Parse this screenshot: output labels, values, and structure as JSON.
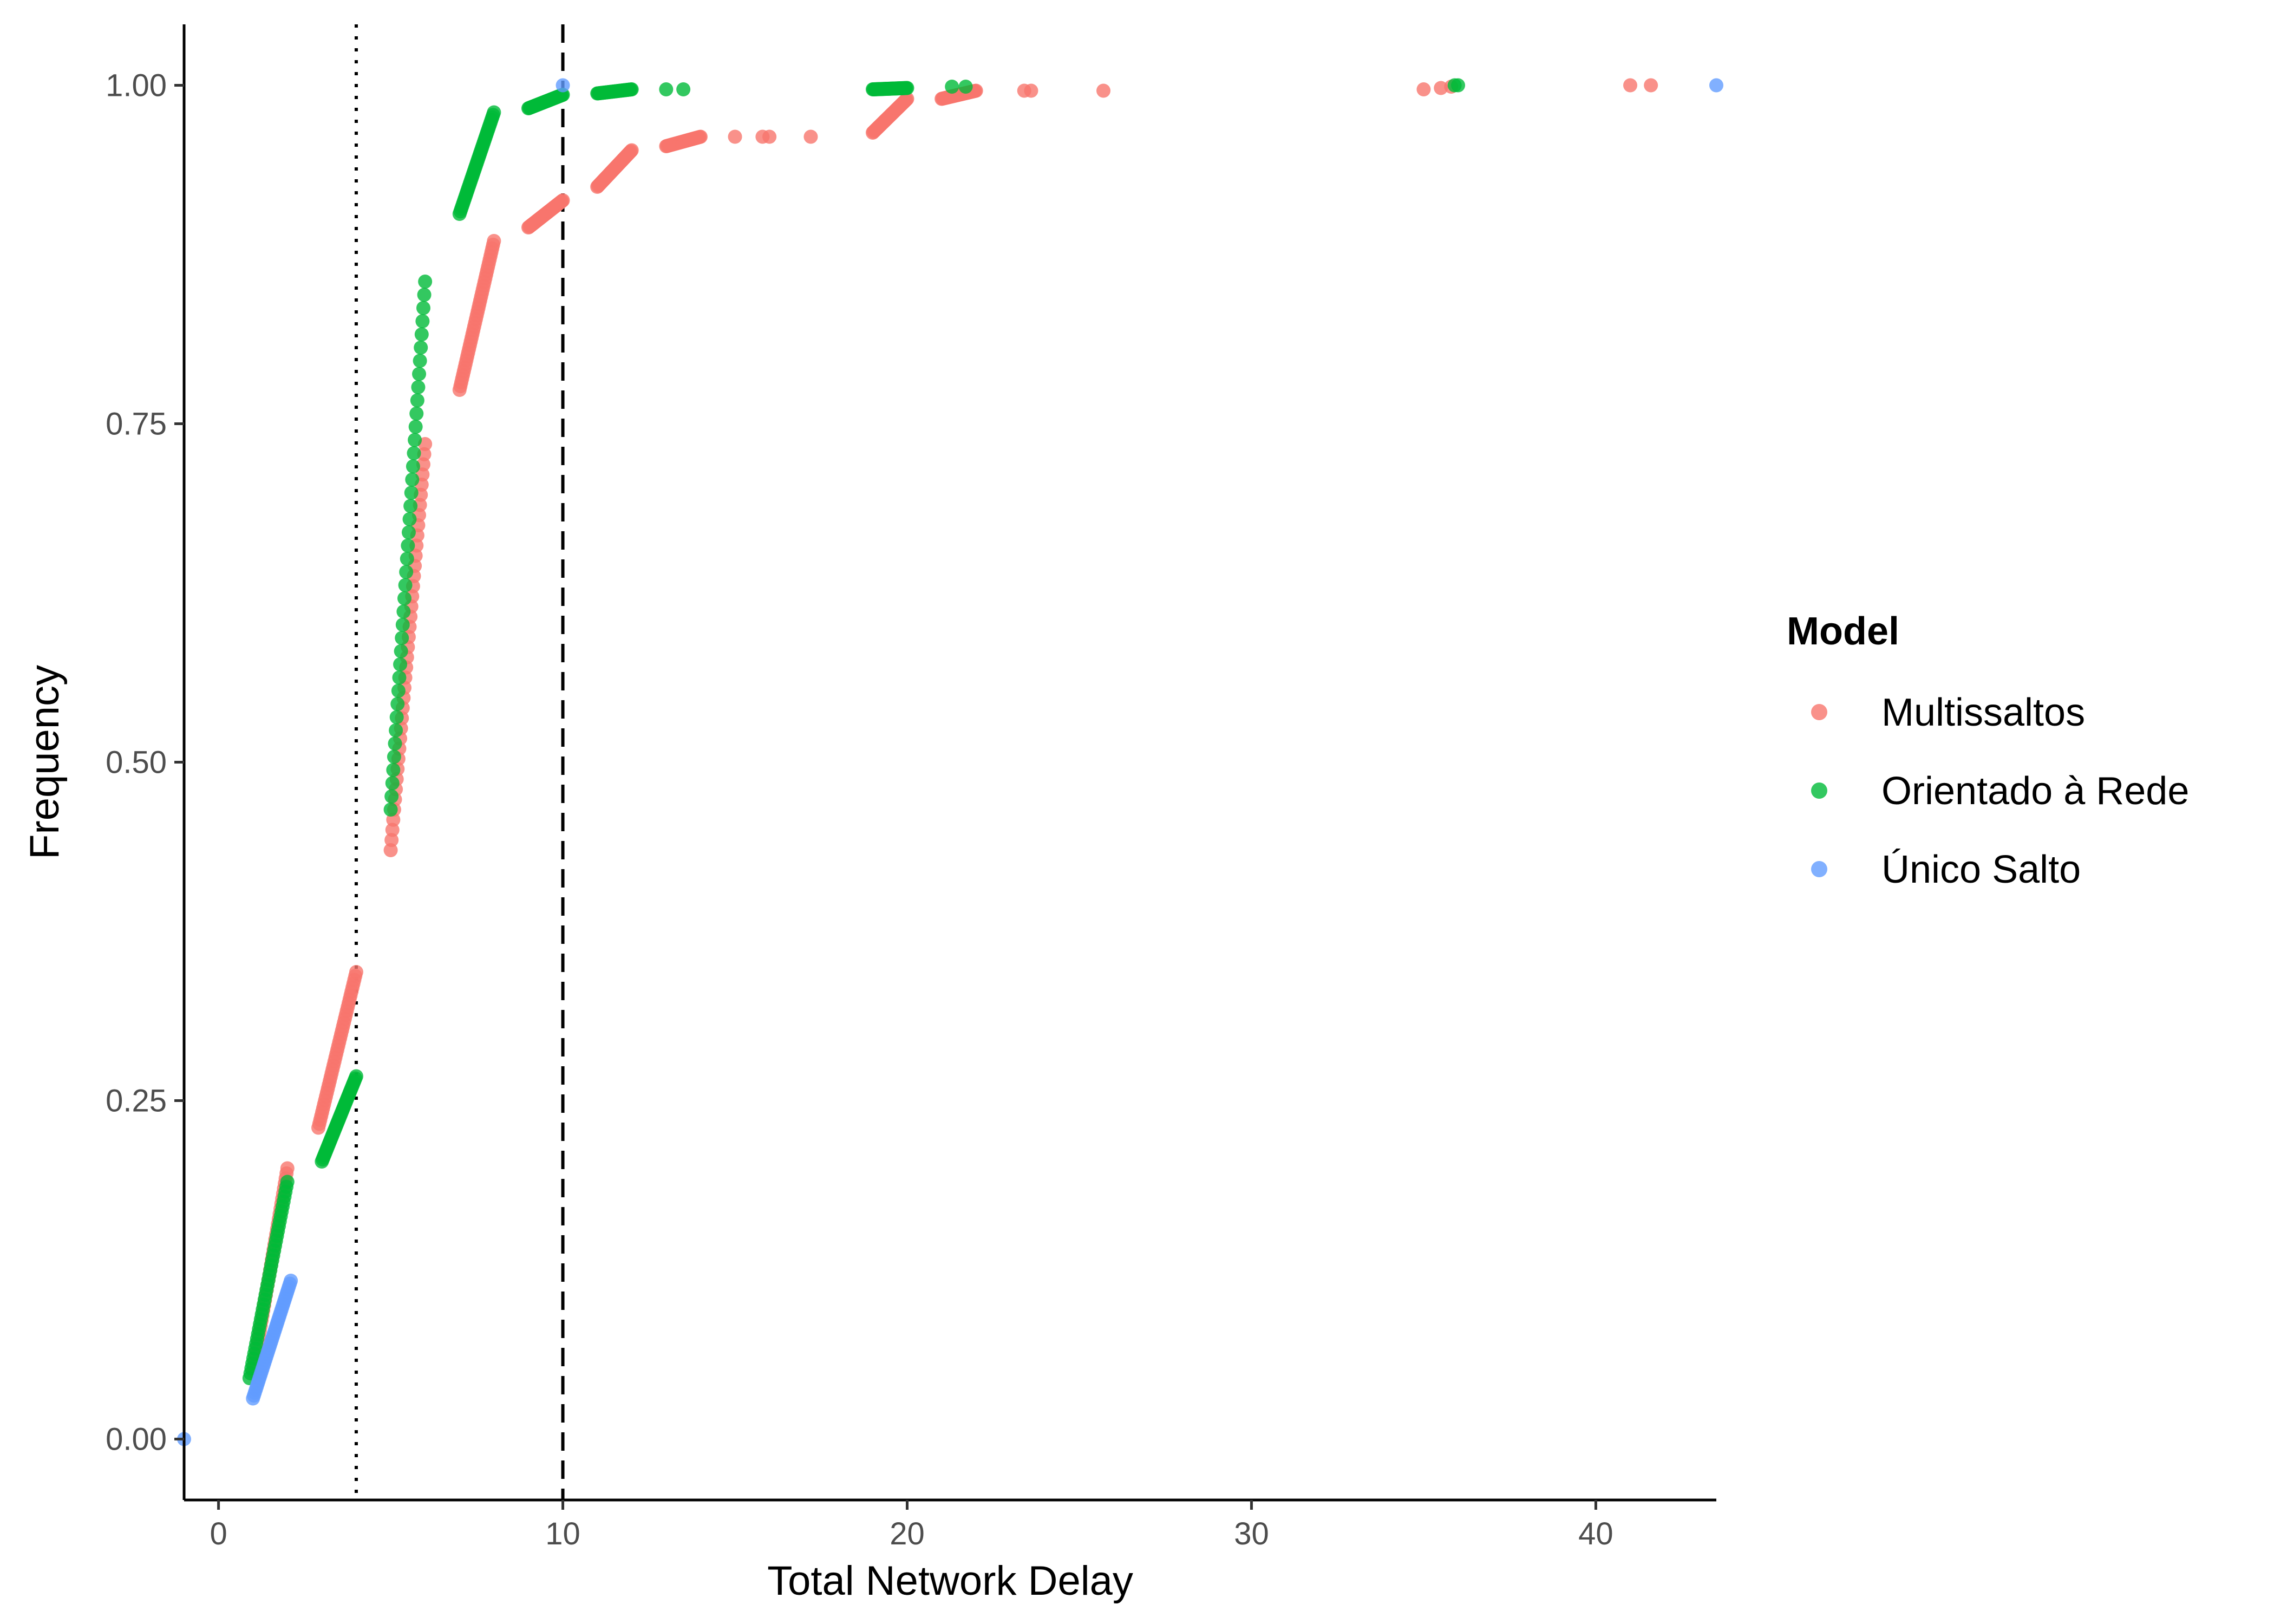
{
  "chart_data": {
    "type": "scatter",
    "title": "",
    "xlabel": "Total Network Delay",
    "ylabel": "Frequency",
    "xlim": [
      -1,
      43.5
    ],
    "ylim": [
      -0.045,
      1.045
    ],
    "x_ticks": [
      0,
      10,
      20,
      30,
      40
    ],
    "x_tick_labels": [
      "0",
      "10",
      "20",
      "30",
      "40"
    ],
    "y_ticks": [
      0,
      0.25,
      0.5,
      0.75,
      1.0
    ],
    "y_tick_labels": [
      "0.00",
      "0.25",
      "0.50",
      "0.75",
      "1.00"
    ],
    "grid": false,
    "legend_position": "right",
    "legend_title": "Model",
    "reference_lines": [
      {
        "x": 4,
        "style": "dotted",
        "color": "#000000"
      },
      {
        "x": 10,
        "style": "dashed",
        "color": "#000000"
      }
    ],
    "series": [
      {
        "name": "Multissaltos",
        "color": "#F8766D",
        "segments": [
          {
            "x": [
              1.0,
              2.0
            ],
            "y": [
              0.05,
              0.2
            ]
          },
          {
            "x": [
              2.9,
              4.0
            ],
            "y": [
              0.23,
              0.345
            ]
          },
          {
            "x": [
              5.0,
              6.0
            ],
            "y": [
              0.435,
              0.735
            ]
          },
          {
            "x": [
              7.0,
              8.0
            ],
            "y": [
              0.775,
              0.885
            ]
          },
          {
            "x": [
              9.0,
              10.0
            ],
            "y": [
              0.895,
              0.915
            ]
          },
          {
            "x": [
              11.0,
              12.0
            ],
            "y": [
              0.925,
              0.952
            ]
          },
          {
            "x": [
              13.0,
              14.0
            ],
            "y": [
              0.955,
              0.962
            ]
          },
          {
            "x": [
              19.0,
              20.0
            ],
            "y": [
              0.965,
              0.99
            ]
          },
          {
            "x": [
              21.0,
              22.0
            ],
            "y": [
              0.99,
              0.996
            ]
          }
        ],
        "points": [
          {
            "x": 15.0,
            "y": 0.962
          },
          {
            "x": 15.8,
            "y": 0.962
          },
          {
            "x": 16.0,
            "y": 0.962
          },
          {
            "x": 17.2,
            "y": 0.962
          },
          {
            "x": 23.4,
            "y": 0.996
          },
          {
            "x": 23.6,
            "y": 0.996
          },
          {
            "x": 25.7,
            "y": 0.996
          },
          {
            "x": 35.0,
            "y": 0.997
          },
          {
            "x": 35.5,
            "y": 0.998
          },
          {
            "x": 35.8,
            "y": 0.999
          },
          {
            "x": 41.0,
            "y": 1.0
          },
          {
            "x": 41.6,
            "y": 1.0
          }
        ]
      },
      {
        "name": "Orientado à Rede",
        "color": "#00BA38",
        "segments": [
          {
            "x": [
              0.9,
              2.0
            ],
            "y": [
              0.045,
              0.19
            ]
          },
          {
            "x": [
              3.0,
              4.0
            ],
            "y": [
              0.205,
              0.268
            ]
          },
          {
            "x": [
              5.0,
              6.0
            ],
            "y": [
              0.465,
              0.855
            ]
          },
          {
            "x": [
              7.0,
              8.0
            ],
            "y": [
              0.905,
              0.98
            ]
          },
          {
            "x": [
              9.0,
              10.0
            ],
            "y": [
              0.983,
              0.993
            ]
          },
          {
            "x": [
              11.0,
              12.0
            ],
            "y": [
              0.994,
              0.997
            ]
          },
          {
            "x": [
              19.0,
              20.0
            ],
            "y": [
              0.997,
              0.998
            ]
          }
        ],
        "points": [
          {
            "x": 13.0,
            "y": 0.997
          },
          {
            "x": 13.5,
            "y": 0.997
          },
          {
            "x": 21.3,
            "y": 0.999
          },
          {
            "x": 21.7,
            "y": 0.999
          },
          {
            "x": 35.9,
            "y": 1.0
          },
          {
            "x": 36.0,
            "y": 1.0
          }
        ]
      },
      {
        "name": "Único Salto",
        "color": "#619CFF",
        "segments": [
          {
            "x": [
              1.0,
              2.1
            ],
            "y": [
              0.03,
              0.117
            ]
          }
        ],
        "points": [
          {
            "x": -1.0,
            "y": 0.0
          },
          {
            "x": 10.0,
            "y": 1.0
          },
          {
            "x": 43.5,
            "y": 1.0
          }
        ]
      }
    ]
  }
}
